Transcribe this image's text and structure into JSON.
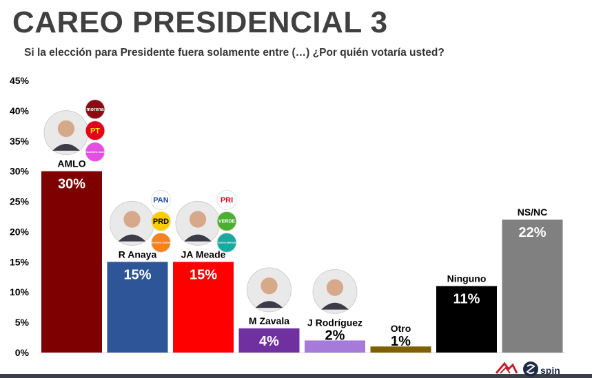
{
  "title": "CAREO PRESIDENCIAL 3",
  "subtitle": "Si la elección para Presidente fuera solamente entre (…) ¿Por quién votaría usted?",
  "logos": {
    "spin_text": "spin"
  },
  "chart_data": {
    "type": "bar",
    "categories": [
      "AMLO",
      "R Anaya",
      "JA Meade",
      "M Zavala",
      "J Rodríguez",
      "Otro",
      "Ninguno",
      "NS/NC"
    ],
    "values": [
      30,
      15,
      15,
      4,
      2,
      1,
      11,
      22
    ],
    "value_labels": [
      "30%",
      "15%",
      "15%",
      "4%",
      "2%",
      "1%",
      "11%",
      "22%"
    ],
    "colors": [
      "#7f0000",
      "#2e5597",
      "#ff0000",
      "#7030a0",
      "#a67ad8",
      "#7f6000",
      "#000000",
      "#808080"
    ],
    "value_label_inside": [
      true,
      true,
      true,
      true,
      false,
      false,
      true,
      true
    ],
    "ylim": [
      0,
      45
    ],
    "yticks": [
      "0%",
      "5%",
      "10%",
      "15%",
      "20%",
      "25%",
      "30%",
      "35%",
      "40%",
      "45%"
    ],
    "grid": false,
    "party_logos": [
      {
        "category": "AMLO",
        "parties": [
          {
            "label": "morena",
            "color": "#8b0a14",
            "text_color": "#ffffff"
          },
          {
            "label": "PT",
            "color": "#e3001b",
            "text_color": "#ffe500"
          },
          {
            "label": "encuentro social",
            "color": "#e44fe3",
            "text_color": "#ffffff"
          }
        ]
      },
      {
        "category": "R Anaya",
        "parties": [
          {
            "label": "PAN",
            "color": "#ffffff",
            "text_color": "#1f4b9c"
          },
          {
            "label": "PRD",
            "color": "#ffcc00",
            "text_color": "#000000"
          },
          {
            "label": "movimiento ciudadano",
            "color": "#f58220",
            "text_color": "#ffffff"
          }
        ]
      },
      {
        "category": "JA Meade",
        "parties": [
          {
            "label": "PRI",
            "color": "#ffffff",
            "text_color": "#e2001a"
          },
          {
            "label": "VERDE",
            "color": "#4caf32",
            "text_color": "#ffffff"
          },
          {
            "label": "nueva alianza",
            "color": "#1aa8a0",
            "text_color": "#ffffff"
          }
        ]
      }
    ],
    "candidate_photos": [
      "AMLO",
      "R Anaya",
      "JA Meade",
      "M Zavala",
      "J Rodríguez"
    ]
  }
}
